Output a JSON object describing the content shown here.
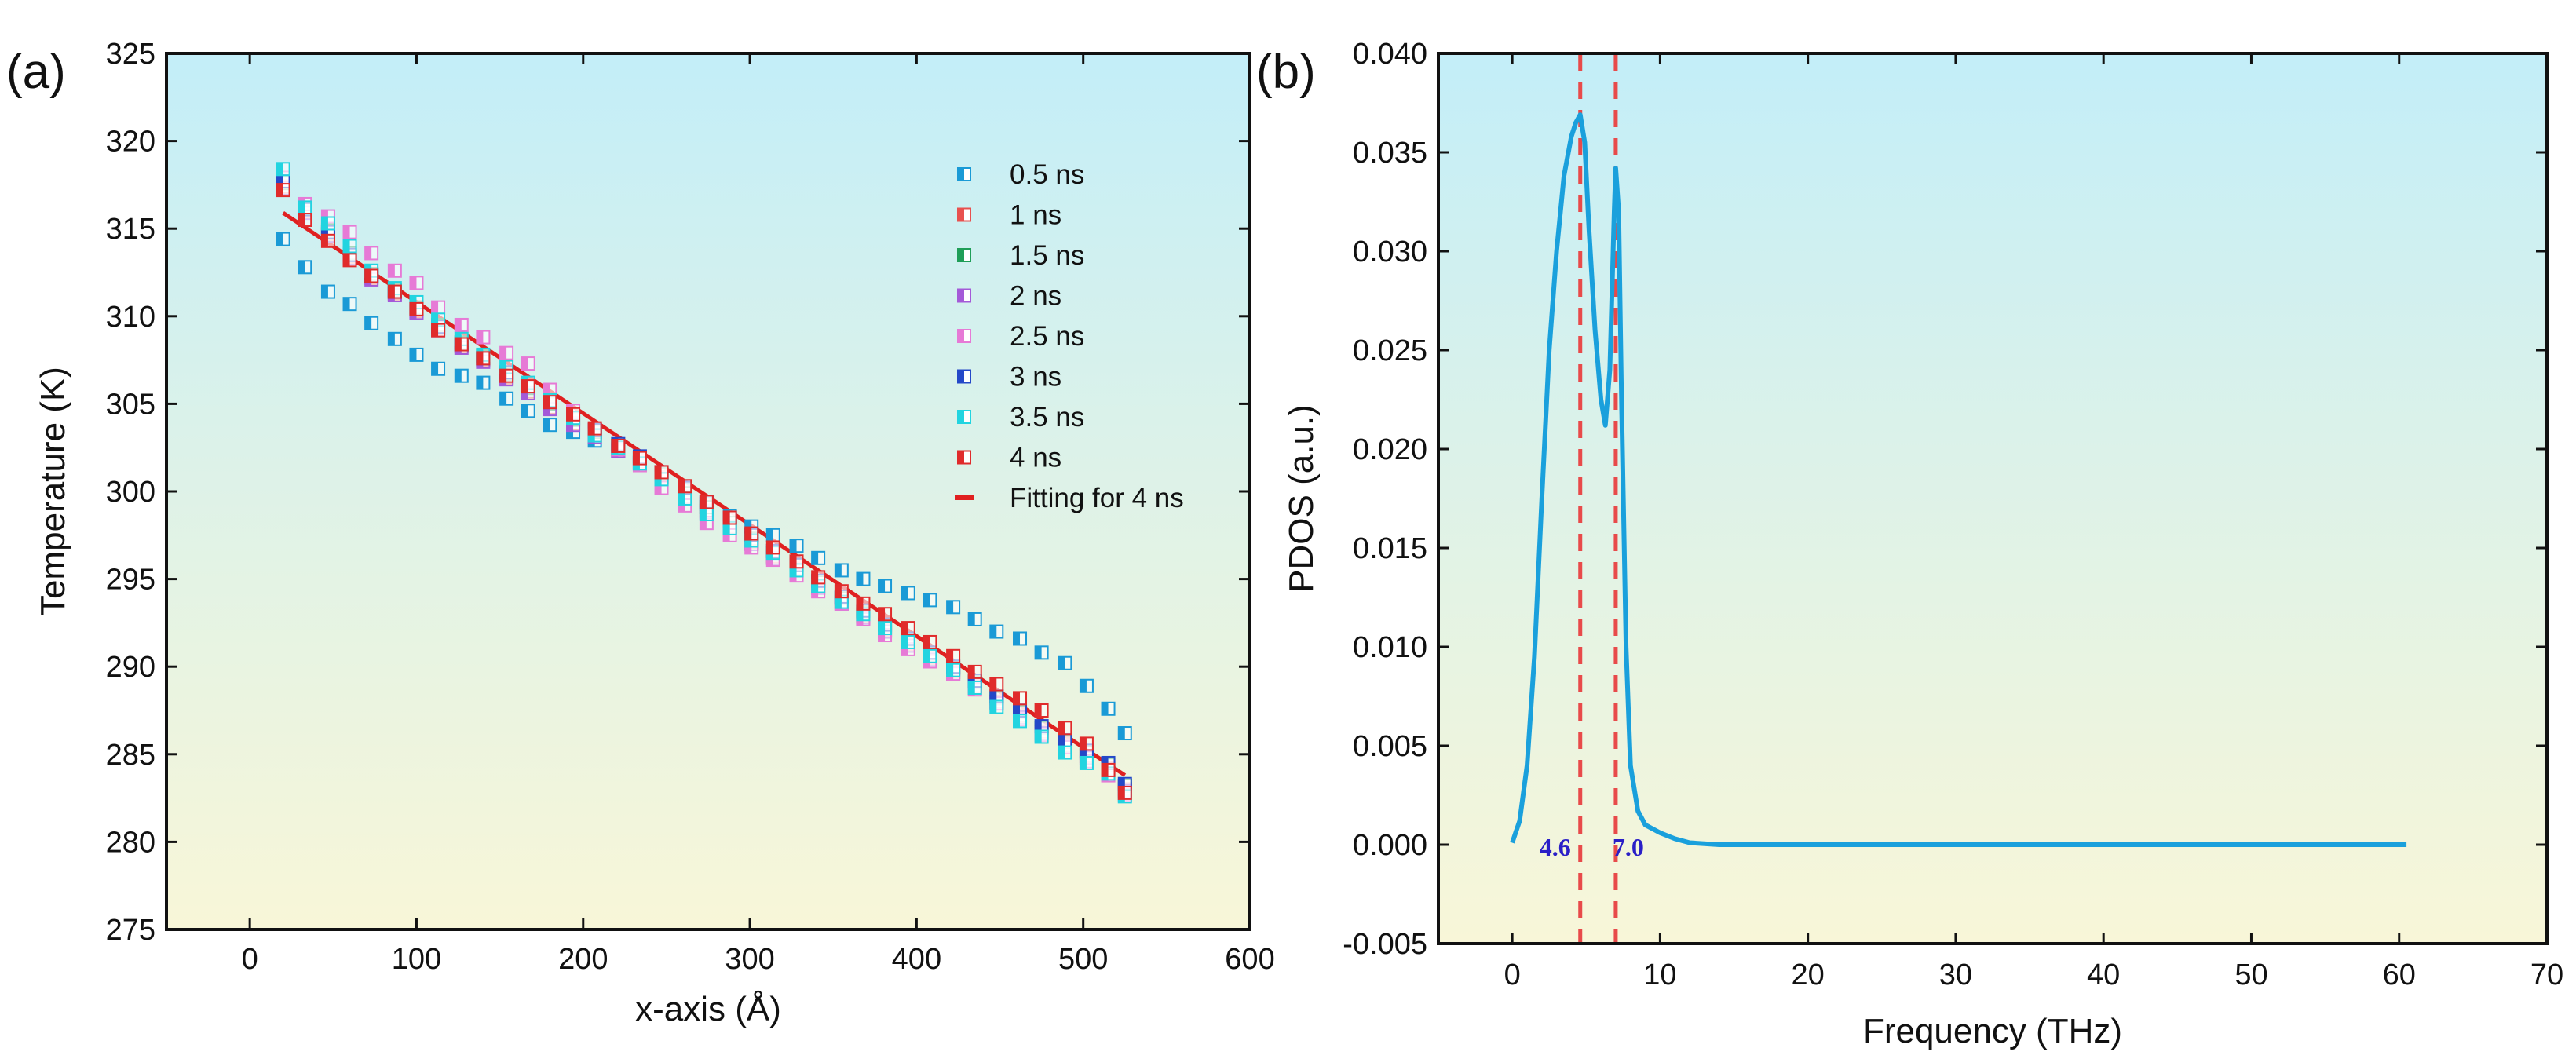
{
  "panels": {
    "a": {
      "label": "(a)"
    },
    "b": {
      "label": "(b)"
    }
  },
  "chart_data": [
    {
      "type": "scatter",
      "xlabel": "x-axis (Å)",
      "ylabel": "Temperature (K)",
      "xlim": [
        -50,
        600
      ],
      "ylim": [
        275,
        325
      ],
      "xticks": [
        0,
        100,
        200,
        300,
        400,
        500,
        600
      ],
      "yticks": [
        275,
        280,
        285,
        290,
        295,
        300,
        305,
        310,
        315,
        320,
        325
      ],
      "x": [
        20,
        33,
        47,
        60,
        73,
        87,
        100,
        113,
        127,
        140,
        154,
        167,
        180,
        194,
        207,
        221,
        234,
        247,
        261,
        274,
        288,
        301,
        314,
        328,
        341,
        355,
        368,
        381,
        395,
        408,
        422,
        435,
        448,
        462,
        475,
        489,
        502,
        515,
        525
      ],
      "legend_position": "top-right",
      "series": [
        {
          "name": "0.5 ns",
          "color": "#1a9ad6",
          "values": [
            314.4,
            312.8,
            311.4,
            310.7,
            309.6,
            308.7,
            307.8,
            307.0,
            306.6,
            306.2,
            305.3,
            304.6,
            303.8,
            303.4,
            302.9,
            302.3,
            301.6,
            300.8,
            300.1,
            299.3,
            298.6,
            298.0,
            297.5,
            296.9,
            296.2,
            295.5,
            295.0,
            294.6,
            294.2,
            293.8,
            293.4,
            292.7,
            292.0,
            291.6,
            290.8,
            290.2,
            288.9,
            287.6,
            286.2
          ]
        },
        {
          "name": "1 ns",
          "color": "#e8514f",
          "values": [
            317.4,
            316.0,
            314.7,
            313.4,
            312.2,
            311.3,
            310.3,
            309.3,
            308.3,
            307.5,
            306.5,
            305.7,
            304.8,
            303.9,
            303.2,
            302.4,
            301.7,
            300.8,
            299.7,
            298.9,
            298.0,
            297.1,
            296.3,
            295.6,
            294.6,
            293.7,
            292.9,
            292.1,
            291.3,
            290.5,
            289.7,
            288.9,
            288.0,
            287.2,
            286.3,
            285.5,
            284.9,
            284.2,
            283.0
          ]
        },
        {
          "name": "1.5 ns",
          "color": "#1f9e58",
          "values": [
            317.6,
            316.2,
            314.9,
            313.6,
            312.4,
            311.5,
            310.5,
            309.5,
            308.5,
            307.7,
            306.7,
            305.9,
            305.0,
            304.1,
            303.4,
            302.6,
            301.9,
            301.0,
            299.9,
            299.1,
            298.2,
            297.3,
            296.5,
            295.8,
            294.8,
            293.9,
            293.1,
            292.3,
            291.5,
            290.7,
            289.9,
            289.1,
            288.2,
            287.4,
            286.5,
            285.7,
            285.1,
            284.4,
            283.2
          ]
        },
        {
          "name": "2 ns",
          "color": "#a45ad8",
          "values": [
            317.3,
            315.9,
            314.6,
            313.3,
            312.1,
            311.2,
            310.2,
            309.2,
            308.2,
            307.4,
            306.4,
            305.6,
            304.7,
            303.8,
            303.1,
            302.3,
            301.6,
            300.7,
            299.6,
            298.8,
            297.9,
            297.0,
            296.2,
            295.5,
            294.5,
            293.6,
            292.8,
            292.0,
            291.2,
            290.4,
            289.6,
            288.8,
            287.9,
            287.1,
            286.2,
            285.4,
            284.8,
            284.1,
            282.9
          ]
        },
        {
          "name": "2.5 ns",
          "color": "#e67ad6",
          "values": [
            317.9,
            316.4,
            315.7,
            314.8,
            313.6,
            312.6,
            311.9,
            310.5,
            309.5,
            308.8,
            307.9,
            307.3,
            305.8,
            304.6,
            303.5,
            302.4,
            301.5,
            300.2,
            299.2,
            298.2,
            297.5,
            296.8,
            296.1,
            295.2,
            294.3,
            293.6,
            292.7,
            291.8,
            291.0,
            290.3,
            289.6,
            288.7,
            287.9,
            287.0,
            286.1,
            285.4,
            284.6,
            283.8,
            282.7
          ]
        },
        {
          "name": "3 ns",
          "color": "#2448c8",
          "values": [
            317.7,
            316.1,
            314.8,
            313.5,
            312.3,
            311.4,
            310.4,
            309.4,
            308.4,
            307.6,
            306.8,
            306.0,
            305.1,
            304.2,
            303.5,
            302.7,
            302.0,
            301.1,
            300.2,
            299.4,
            298.5,
            297.5,
            296.6,
            295.8,
            294.9,
            294.0,
            293.2,
            292.4,
            291.6,
            290.8,
            290.0,
            289.2,
            288.3,
            287.5,
            286.6,
            285.8,
            285.2,
            284.5,
            283.3
          ]
        },
        {
          "name": "3.5 ns",
          "color": "#22d4e0",
          "values": [
            318.4,
            316.2,
            315.3,
            314.0,
            312.6,
            311.6,
            310.8,
            309.8,
            308.7,
            307.8,
            307.1,
            306.2,
            305.2,
            304.2,
            303.2,
            302.5,
            301.6,
            300.7,
            299.6,
            298.7,
            297.9,
            297.2,
            296.5,
            295.5,
            294.6,
            293.7,
            293.0,
            292.2,
            291.4,
            290.6,
            289.8,
            288.8,
            287.7,
            286.9,
            286.0,
            285.1,
            284.5,
            283.9,
            282.6
          ]
        },
        {
          "name": "4 ns",
          "color": "#e02b2b",
          "values": [
            317.2,
            315.5,
            314.3,
            313.2,
            312.3,
            311.4,
            310.4,
            309.2,
            308.4,
            307.6,
            306.6,
            306.0,
            305.1,
            304.4,
            303.6,
            302.6,
            301.9,
            301.1,
            300.3,
            299.4,
            298.5,
            297.6,
            296.8,
            296.0,
            295.1,
            294.3,
            293.6,
            293.0,
            292.2,
            291.4,
            290.6,
            289.7,
            289.0,
            288.2,
            287.5,
            286.5,
            285.6,
            284.1,
            282.8
          ]
        }
      ],
      "fit": {
        "name": "Fitting for 4 ns",
        "color": "#e02020",
        "x": [
          20,
          525
        ],
        "values": [
          315.9,
          283.8
        ]
      }
    },
    {
      "type": "line",
      "xlabel": "Frequency (THz)",
      "ylabel": "PDOS (a.u.)",
      "xlim": [
        -5,
        70
      ],
      "ylim": [
        -0.005,
        0.04
      ],
      "xticks": [
        0,
        10,
        20,
        30,
        40,
        50,
        60,
        70
      ],
      "yticks": [
        -0.005,
        0.0,
        0.005,
        0.01,
        0.015,
        0.02,
        0.025,
        0.03,
        0.035,
        0.04
      ],
      "ytick_labels": [
        "-0.005",
        "0.000",
        "0.005",
        "0.010",
        "0.015",
        "0.020",
        "0.025",
        "0.030",
        "0.035",
        "0.040"
      ],
      "series": [
        {
          "color": "#1aa0dc",
          "x": [
            0,
            0.5,
            1,
            1.5,
            2,
            2.5,
            3,
            3.5,
            4,
            4.3,
            4.6,
            4.9,
            5.2,
            5.6,
            6.0,
            6.3,
            6.6,
            6.9,
            7.0,
            7.2,
            7.4,
            7.7,
            8.0,
            8.5,
            9,
            10,
            11,
            12,
            14,
            20,
            30,
            40,
            50,
            60.5
          ],
          "y": [
            0.0001,
            0.0012,
            0.004,
            0.0095,
            0.0175,
            0.025,
            0.03,
            0.0338,
            0.0358,
            0.0365,
            0.0369,
            0.0355,
            0.031,
            0.026,
            0.0225,
            0.0212,
            0.024,
            0.032,
            0.0342,
            0.032,
            0.022,
            0.01,
            0.004,
            0.0017,
            0.001,
            0.0006,
            0.0003,
            0.0001,
            0.0,
            0.0,
            0.0,
            0.0,
            0.0,
            0.0
          ]
        }
      ],
      "vlines": [
        {
          "x": 4.6,
          "label": "4.6",
          "color": "#e84a4a"
        },
        {
          "x": 7.0,
          "label": "7.0",
          "color": "#e84a4a"
        }
      ]
    }
  ]
}
